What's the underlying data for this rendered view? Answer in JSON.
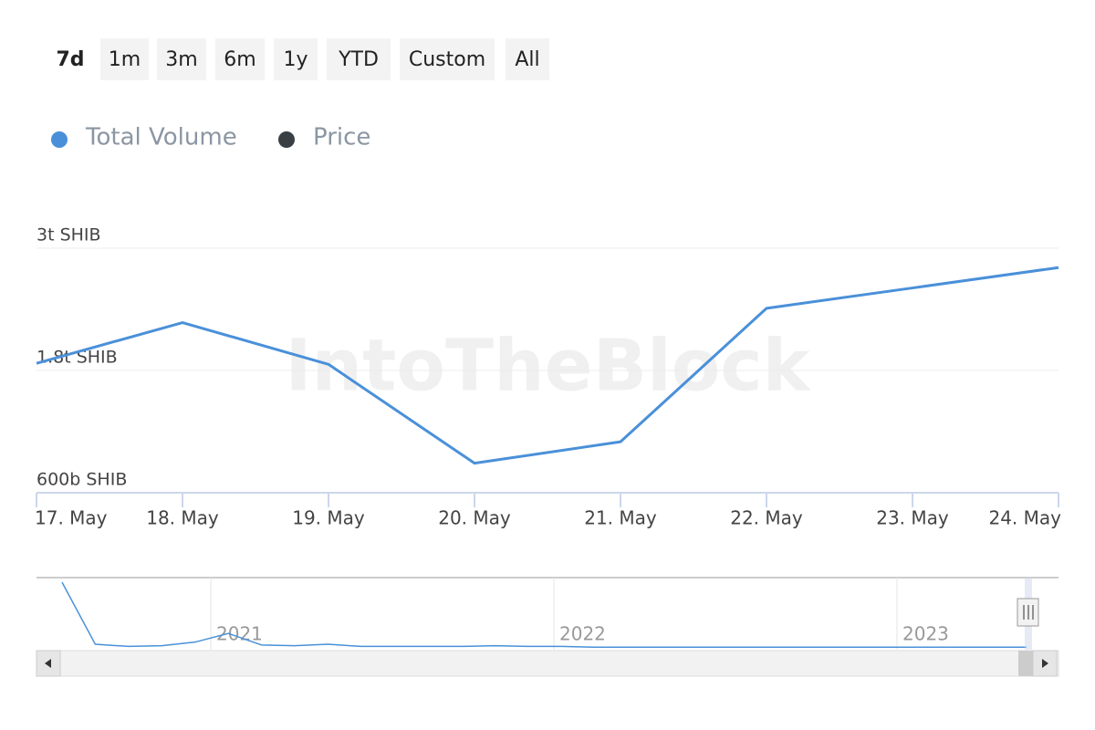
{
  "range_buttons": [
    "7d",
    "1m",
    "3m",
    "6m",
    "1y",
    "YTD",
    "Custom",
    "All"
  ],
  "selected_range": 0,
  "watermark": "IntoTheBlock",
  "chart_data": {
    "type": "line",
    "categories": [
      "17. May",
      "18. May",
      "19. May",
      "20. May",
      "21. May",
      "22. May",
      "23. May",
      "24. May"
    ],
    "series": [
      {
        "name": "Total Volume",
        "color": "#4a90d9",
        "values": [
          1870000000000,
          2270000000000,
          1860000000000,
          890000000000,
          1100000000000,
          2410000000000,
          2610000000000,
          2810000000000
        ]
      },
      {
        "name": "Price",
        "color": "#3a3f44",
        "values": [
          null,
          null,
          null,
          null,
          null,
          null,
          null,
          null
        ]
      }
    ],
    "ylim": [
      600000000000,
      3000000000000
    ],
    "yticks": [
      {
        "value": 600000000000,
        "label": "600b SHIB"
      },
      {
        "value": 1800000000000,
        "label": "1.8t SHIB"
      },
      {
        "value": 3000000000000,
        "label": "3t SHIB"
      }
    ],
    "grid": true,
    "navigator": {
      "labels": [
        "2021",
        "2022",
        "2023"
      ],
      "values": [
        91,
        5,
        2,
        3,
        8,
        20,
        4,
        3,
        5,
        2,
        2,
        2,
        2,
        3,
        2,
        2,
        1,
        1,
        1,
        1,
        1,
        1,
        1,
        1,
        1,
        1,
        1,
        1,
        1,
        1
      ],
      "ylim": [
        0,
        100
      ]
    }
  }
}
